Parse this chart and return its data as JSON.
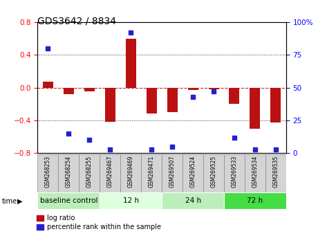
{
  "title": "GDS3642 / 8834",
  "samples": [
    "GSM268253",
    "GSM268254",
    "GSM268255",
    "GSM269467",
    "GSM269469",
    "GSM269471",
    "GSM269507",
    "GSM269524",
    "GSM269525",
    "GSM269533",
    "GSM269534",
    "GSM269535"
  ],
  "log_ratio": [
    0.07,
    -0.08,
    -0.05,
    -0.42,
    0.6,
    -0.32,
    -0.3,
    -0.03,
    -0.02,
    -0.2,
    -0.5,
    -0.43
  ],
  "percentile_rank": [
    80,
    15,
    10,
    3,
    92,
    3,
    5,
    43,
    47,
    12,
    3,
    3
  ],
  "groups": [
    {
      "label": "baseline control",
      "start": 0,
      "end": 3,
      "color": "#bbeebb"
    },
    {
      "label": "12 h",
      "start": 3,
      "end": 6,
      "color": "#ddffdd"
    },
    {
      "label": "24 h",
      "start": 6,
      "end": 9,
      "color": "#bbeebb"
    },
    {
      "label": "72 h",
      "start": 9,
      "end": 12,
      "color": "#44dd44"
    }
  ],
  "ylim_left": [
    -0.8,
    0.8
  ],
  "ylim_right": [
    0,
    100
  ],
  "yticks_left": [
    -0.8,
    -0.4,
    0.0,
    0.4,
    0.8
  ],
  "yticks_right": [
    0,
    25,
    50,
    75,
    100
  ],
  "bar_color": "#bb1111",
  "dot_color": "#2222cc",
  "bg_color": "#ffffff",
  "dotted_line_color": "#333333",
  "zero_line_color": "#cc2222",
  "sample_box_color": "#d4d4d4",
  "sample_box_edge": "#888888"
}
